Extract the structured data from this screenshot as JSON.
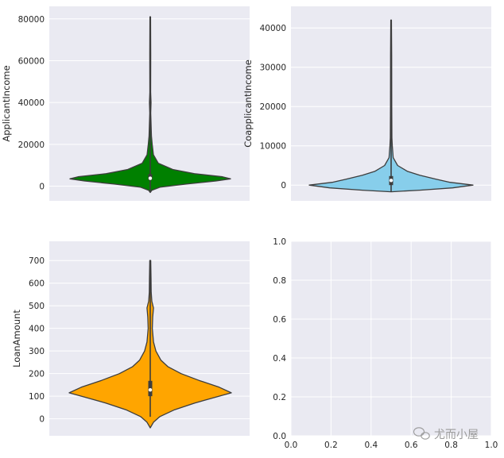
{
  "chart_data": [
    {
      "type": "violin",
      "ylabel": "ApplicantIncome",
      "ylim": [
        -7000,
        86000
      ],
      "yticks": [
        0,
        20000,
        40000,
        60000,
        80000
      ],
      "grid": true,
      "color": "#008000",
      "distribution": {
        "min": -3000,
        "q1": 2900,
        "median": 3800,
        "q3": 5800,
        "max": 81000,
        "density_profile": [
          {
            "y": -3000,
            "w": 0.0
          },
          {
            "y": -2000,
            "w": 0.02
          },
          {
            "y": -500,
            "w": 0.12
          },
          {
            "y": 1000,
            "w": 0.45
          },
          {
            "y": 2500,
            "w": 0.82
          },
          {
            "y": 3500,
            "w": 1.0
          },
          {
            "y": 4500,
            "w": 0.9
          },
          {
            "y": 6000,
            "w": 0.55
          },
          {
            "y": 8000,
            "w": 0.28
          },
          {
            "y": 11000,
            "w": 0.1
          },
          {
            "y": 15000,
            "w": 0.04
          },
          {
            "y": 20000,
            "w": 0.025
          },
          {
            "y": 24000,
            "w": 0.015
          },
          {
            "y": 35000,
            "w": 0.006
          },
          {
            "y": 40000,
            "w": 0.01
          },
          {
            "y": 45000,
            "w": 0.005
          },
          {
            "y": 63000,
            "w": 0.006
          },
          {
            "y": 81000,
            "w": 0.004
          }
        ]
      }
    },
    {
      "type": "violin",
      "ylabel": "CoapplicantIncome",
      "ylim": [
        -4000,
        45500
      ],
      "yticks": [
        0,
        10000,
        20000,
        30000,
        40000
      ],
      "grid": true,
      "color": "#87CEEB",
      "distribution": {
        "min": -1700,
        "q1": 0,
        "median": 1200,
        "q3": 2300,
        "max": 42000,
        "density_profile": [
          {
            "y": -1700,
            "w": 0.0
          },
          {
            "y": -1300,
            "w": 0.35
          },
          {
            "y": -700,
            "w": 0.75
          },
          {
            "y": 0,
            "w": 1.0
          },
          {
            "y": 700,
            "w": 0.72
          },
          {
            "y": 1500,
            "w": 0.55
          },
          {
            "y": 2500,
            "w": 0.35
          },
          {
            "y": 3500,
            "w": 0.2
          },
          {
            "y": 5000,
            "w": 0.08
          },
          {
            "y": 7000,
            "w": 0.025
          },
          {
            "y": 10000,
            "w": 0.015
          },
          {
            "y": 12000,
            "w": 0.01
          },
          {
            "y": 20000,
            "w": 0.008
          },
          {
            "y": 33000,
            "w": 0.007
          },
          {
            "y": 42000,
            "w": 0.004
          }
        ]
      }
    },
    {
      "type": "violin",
      "ylabel": "LoanAmount",
      "ylim": [
        -75,
        785
      ],
      "yticks": [
        0,
        100,
        200,
        300,
        400,
        500,
        600,
        700
      ],
      "grid": true,
      "color": "#FFA500",
      "distribution": {
        "min": 9,
        "q1": 100,
        "median": 128,
        "q3": 168,
        "max": 700,
        "density_profile": [
          {
            "y": -40,
            "w": 0.0
          },
          {
            "y": -15,
            "w": 0.04
          },
          {
            "y": 10,
            "w": 0.12
          },
          {
            "y": 40,
            "w": 0.3
          },
          {
            "y": 70,
            "w": 0.55
          },
          {
            "y": 100,
            "w": 0.85
          },
          {
            "y": 115,
            "w": 1.0
          },
          {
            "y": 140,
            "w": 0.85
          },
          {
            "y": 170,
            "w": 0.6
          },
          {
            "y": 200,
            "w": 0.38
          },
          {
            "y": 230,
            "w": 0.22
          },
          {
            "y": 260,
            "w": 0.13
          },
          {
            "y": 300,
            "w": 0.07
          },
          {
            "y": 340,
            "w": 0.04
          },
          {
            "y": 400,
            "w": 0.025
          },
          {
            "y": 450,
            "w": 0.03
          },
          {
            "y": 490,
            "w": 0.04
          },
          {
            "y": 520,
            "w": 0.02
          },
          {
            "y": 560,
            "w": 0.012
          },
          {
            "y": 620,
            "w": 0.01
          },
          {
            "y": 700,
            "w": 0.006
          }
        ]
      }
    },
    {
      "type": "empty",
      "xlim": [
        0,
        1
      ],
      "ylim": [
        0,
        1
      ],
      "xticks": [
        "0.0",
        "0.2",
        "0.4",
        "0.6",
        "0.8",
        "1.0"
      ],
      "yticks": [
        "0.0",
        "0.2",
        "0.4",
        "0.6",
        "0.8",
        "1.0"
      ],
      "grid": true
    }
  ],
  "watermark": {
    "text": "尤而小屋",
    "icon": "wechat-icon"
  }
}
